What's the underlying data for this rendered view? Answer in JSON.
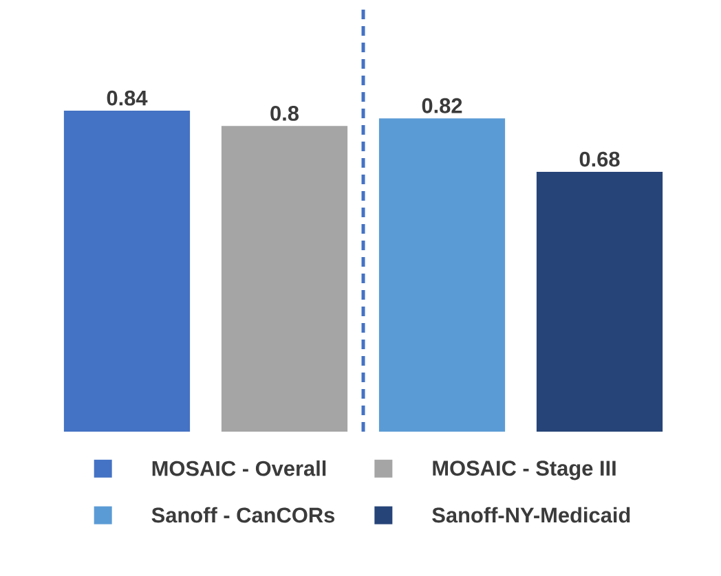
{
  "chart_data": {
    "type": "bar",
    "categories": [
      null
    ],
    "series": [
      {
        "name": "MOSAIC - Overall",
        "color": "#4472c4",
        "values": [
          0.84
        ]
      },
      {
        "name": "MOSAIC - Stage III",
        "color": "#a5a5a5",
        "values": [
          0.8
        ]
      },
      {
        "name": "Sanoff - CanCORs",
        "color": "#5b9bd5",
        "values": [
          0.82
        ]
      },
      {
        "name": "Sanoff-NY-Medicaid",
        "color": "#264478",
        "values": [
          0.68
        ]
      }
    ],
    "data_labels": true,
    "legend": "bottom"
  }
}
